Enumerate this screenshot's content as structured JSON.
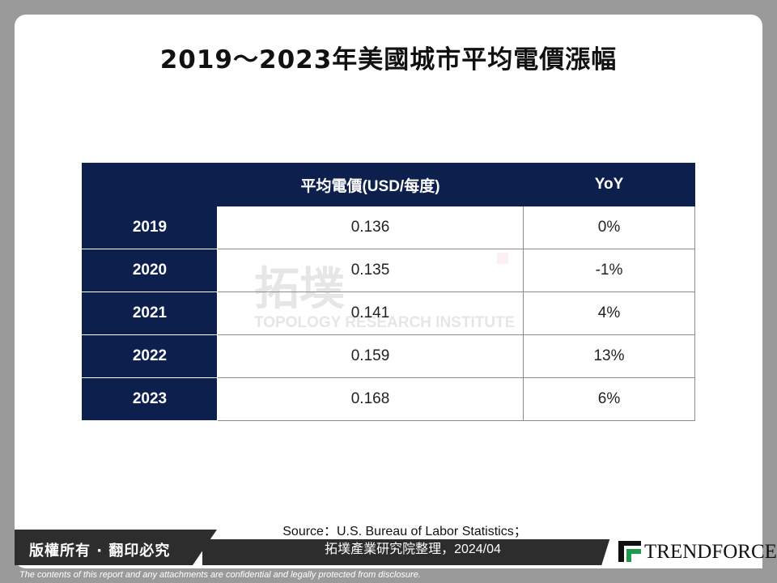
{
  "title": "2019～2023年美國城市平均電價漲幅",
  "chart_data": {
    "type": "table",
    "columns": [
      "",
      "平均電價(USD/每度)",
      "YoY"
    ],
    "rows": [
      {
        "year": "2019",
        "price": "0.136",
        "yoy": "0%"
      },
      {
        "year": "2020",
        "price": "0.135",
        "yoy": "-1%"
      },
      {
        "year": "2021",
        "price": "0.141",
        "yoy": "4%"
      },
      {
        "year": "2022",
        "price": "0.159",
        "yoy": "13%"
      },
      {
        "year": "2023",
        "price": "0.168",
        "yoy": "6%"
      }
    ]
  },
  "watermark": {
    "cn": "拓墣",
    "en": "TOPOLOGY RESEARCH INSTITUTE"
  },
  "source": {
    "line1": "Source：U.S. Bureau of Labor Statistics；",
    "line2": "拓墣產業研究院整理，2024/04"
  },
  "footer": {
    "copyright": "版權所有 · 翻印必究",
    "disclaimer": "The contents of this report and any attachments are confidential and legally protected from disclosure."
  },
  "logo": {
    "name": "TRENDFORCE",
    "icon": "trendforce-logo-icon",
    "accent": "#1f9a4a"
  },
  "colors": {
    "header_bg": "#0d1f4d",
    "page_bg": "#9a9a9a"
  }
}
